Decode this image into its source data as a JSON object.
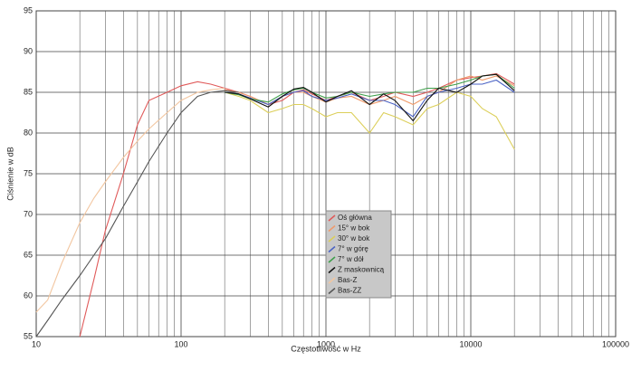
{
  "chart_data": {
    "type": "line",
    "x_label": "Częstotliwość w Hz",
    "y_label": "Ciśnienie w dB",
    "log_x": true,
    "grid": true,
    "xlim": [
      10,
      100000
    ],
    "xticks": [
      10,
      100,
      1000,
      10000,
      100000
    ],
    "ylim": [
      55,
      95
    ],
    "yticks": [
      55,
      60,
      65,
      70,
      75,
      80,
      85,
      90,
      95
    ],
    "x": [
      10,
      12,
      15,
      20,
      25,
      30,
      40,
      50,
      60,
      80,
      100,
      130,
      160,
      200,
      250,
      300,
      400,
      500,
      600,
      700,
      800,
      1000,
      1200,
      1500,
      2000,
      2500,
      3000,
      4000,
      5000,
      6000,
      8000,
      10000,
      12000,
      15000,
      20000
    ],
    "series": [
      {
        "name": "Oś główna",
        "color": "#e05a5a",
        "values": [
          null,
          null,
          null,
          55,
          62,
          68,
          75,
          81,
          84,
          85,
          85.8,
          86.3,
          86,
          85.5,
          85,
          84.5,
          83.5,
          84,
          85,
          85.3,
          84.8,
          84,
          84.5,
          85,
          84,
          84.5,
          85,
          84.5,
          85,
          85.5,
          86.5,
          86.8,
          87,
          87.3,
          86
        ]
      },
      {
        "name": "15° w bok",
        "color": "#f09a6a",
        "values": [
          null,
          null,
          null,
          null,
          null,
          null,
          null,
          null,
          null,
          null,
          null,
          null,
          null,
          85.3,
          85,
          84.5,
          83.5,
          84.5,
          85,
          85,
          84.5,
          83.8,
          84.3,
          84.5,
          83.5,
          84,
          84.5,
          83.5,
          84.5,
          85,
          86.5,
          87,
          86.5,
          87,
          85.8
        ]
      },
      {
        "name": "30° w bok",
        "color": "#dccf5a",
        "values": [
          null,
          null,
          null,
          null,
          null,
          null,
          null,
          null,
          null,
          null,
          null,
          null,
          null,
          85,
          84.5,
          84,
          82.5,
          83,
          83.5,
          83.5,
          83,
          82,
          82.5,
          82.5,
          80,
          82.5,
          82,
          81,
          83,
          83.5,
          85,
          84.5,
          83,
          82,
          78
        ]
      },
      {
        "name": "7° w górę",
        "color": "#4a62c4",
        "values": [
          null,
          null,
          null,
          null,
          null,
          null,
          null,
          null,
          null,
          null,
          null,
          null,
          null,
          85,
          84.8,
          84.3,
          83.5,
          84.5,
          85,
          85.2,
          84.5,
          84,
          84.3,
          84.8,
          84,
          84,
          83.5,
          82,
          84.5,
          85,
          85.5,
          86,
          86,
          86.5,
          85
        ]
      },
      {
        "name": "7° w dół",
        "color": "#3d9e4a",
        "values": [
          null,
          null,
          null,
          null,
          null,
          null,
          null,
          null,
          null,
          null,
          null,
          null,
          null,
          85,
          84.7,
          84.2,
          83.8,
          84.8,
          85.3,
          85.5,
          85,
          84.3,
          84.5,
          85,
          84.5,
          84.8,
          85,
          85,
          85.5,
          85.5,
          86,
          86.5,
          87,
          87.2,
          85.5
        ]
      },
      {
        "name": "Z maskownicą",
        "color": "#111111",
        "values": [
          null,
          null,
          null,
          null,
          null,
          null,
          null,
          null,
          null,
          null,
          null,
          null,
          null,
          85,
          84.8,
          84.2,
          83.2,
          84.5,
          85.4,
          85.6,
          85,
          83.8,
          84.5,
          85.2,
          83.5,
          84.8,
          84,
          81.5,
          84,
          85.5,
          85,
          86,
          87,
          87.2,
          85.2
        ]
      },
      {
        "name": "Bas-Z",
        "color": "#f2c6a0",
        "values": [
          58,
          59.5,
          64,
          69,
          72,
          74,
          77,
          79,
          80.5,
          82.5,
          84,
          85,
          85.3,
          85.5,
          null,
          null,
          null,
          null,
          null,
          null,
          null,
          null,
          null,
          null,
          null,
          null,
          null,
          null,
          null,
          null,
          null,
          null,
          null,
          null,
          null
        ]
      },
      {
        "name": "Bas-ZZ",
        "color": "#555555",
        "values": [
          55,
          57,
          59.5,
          62.5,
          65,
          67,
          71,
          74,
          76.5,
          80,
          82.5,
          84.5,
          85,
          85.2,
          85,
          null,
          null,
          null,
          null,
          null,
          null,
          null,
          null,
          null,
          null,
          null,
          null,
          null,
          null,
          null,
          null,
          null,
          null,
          null,
          null
        ]
      }
    ]
  }
}
